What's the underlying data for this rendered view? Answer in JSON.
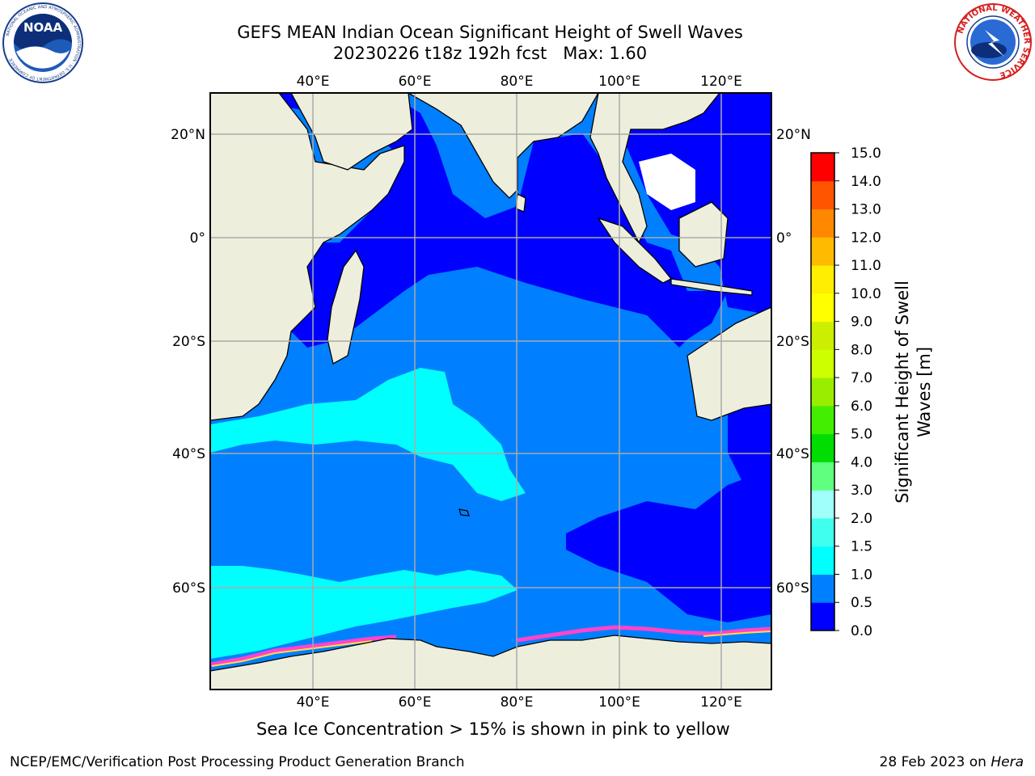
{
  "title": {
    "line1": "GEFS MEAN Indian Ocean Significant Height of Swell Waves",
    "line2": "20230226 t18z 192h fcst   Max: 1.60"
  },
  "map": {
    "lon_ticks": [
      "40°E",
      "60°E",
      "80°E",
      "100°E",
      "120°E"
    ],
    "lat_ticks": [
      "20°N",
      "0°",
      "20°S",
      "40°S",
      "60°S"
    ],
    "obscured_lat_ticks_right": [
      "20°S",
      "40°S",
      "60°S"
    ],
    "colors": {
      "ocean_dark": "#0000ff",
      "ocean_mid": "#0080ff",
      "ocean_cyan": "#00ffff",
      "land": "#eeeedd",
      "ice_pink": "#ff44cc"
    }
  },
  "colorbar": {
    "label_line1": "Significant Height of Swell",
    "label_line2": "Waves [m]",
    "levels": [
      "0.0",
      "0.5",
      "1.0",
      "1.5",
      "2.0",
      "3.0",
      "4.0",
      "5.0",
      "6.0",
      "7.0",
      "8.0",
      "9.0",
      "10.0",
      "11.0",
      "12.0",
      "13.0",
      "14.0",
      "15.0"
    ],
    "colors": [
      "#0000ff",
      "#0080ff",
      "#00ffff",
      "#40ffee",
      "#a0fff8",
      "#60ff80",
      "#00dd00",
      "#44ee00",
      "#99ee00",
      "#ccff00",
      "#ccee00",
      "#ffff00",
      "#ffee00",
      "#ffbb00",
      "#ff8800",
      "#ff5500",
      "#ff0000"
    ]
  },
  "caption": "Sea Ice Concentration > 15% is shown in pink to yellow",
  "footer": {
    "left": "NCEP/EMC/Verification Post Processing Product Generation Branch",
    "right_prefix": "28 Feb 2023 on ",
    "right_italic": "Hera"
  },
  "logos": {
    "noaa": "NOAA",
    "noaa_ring": "NATIONAL OCEANIC AND ATMOSPHERIC ADMINISTRATION · U.S. DEPARTMENT OF COMMERCE",
    "nws_ring": "NATIONAL WEATHER SERVICE"
  }
}
